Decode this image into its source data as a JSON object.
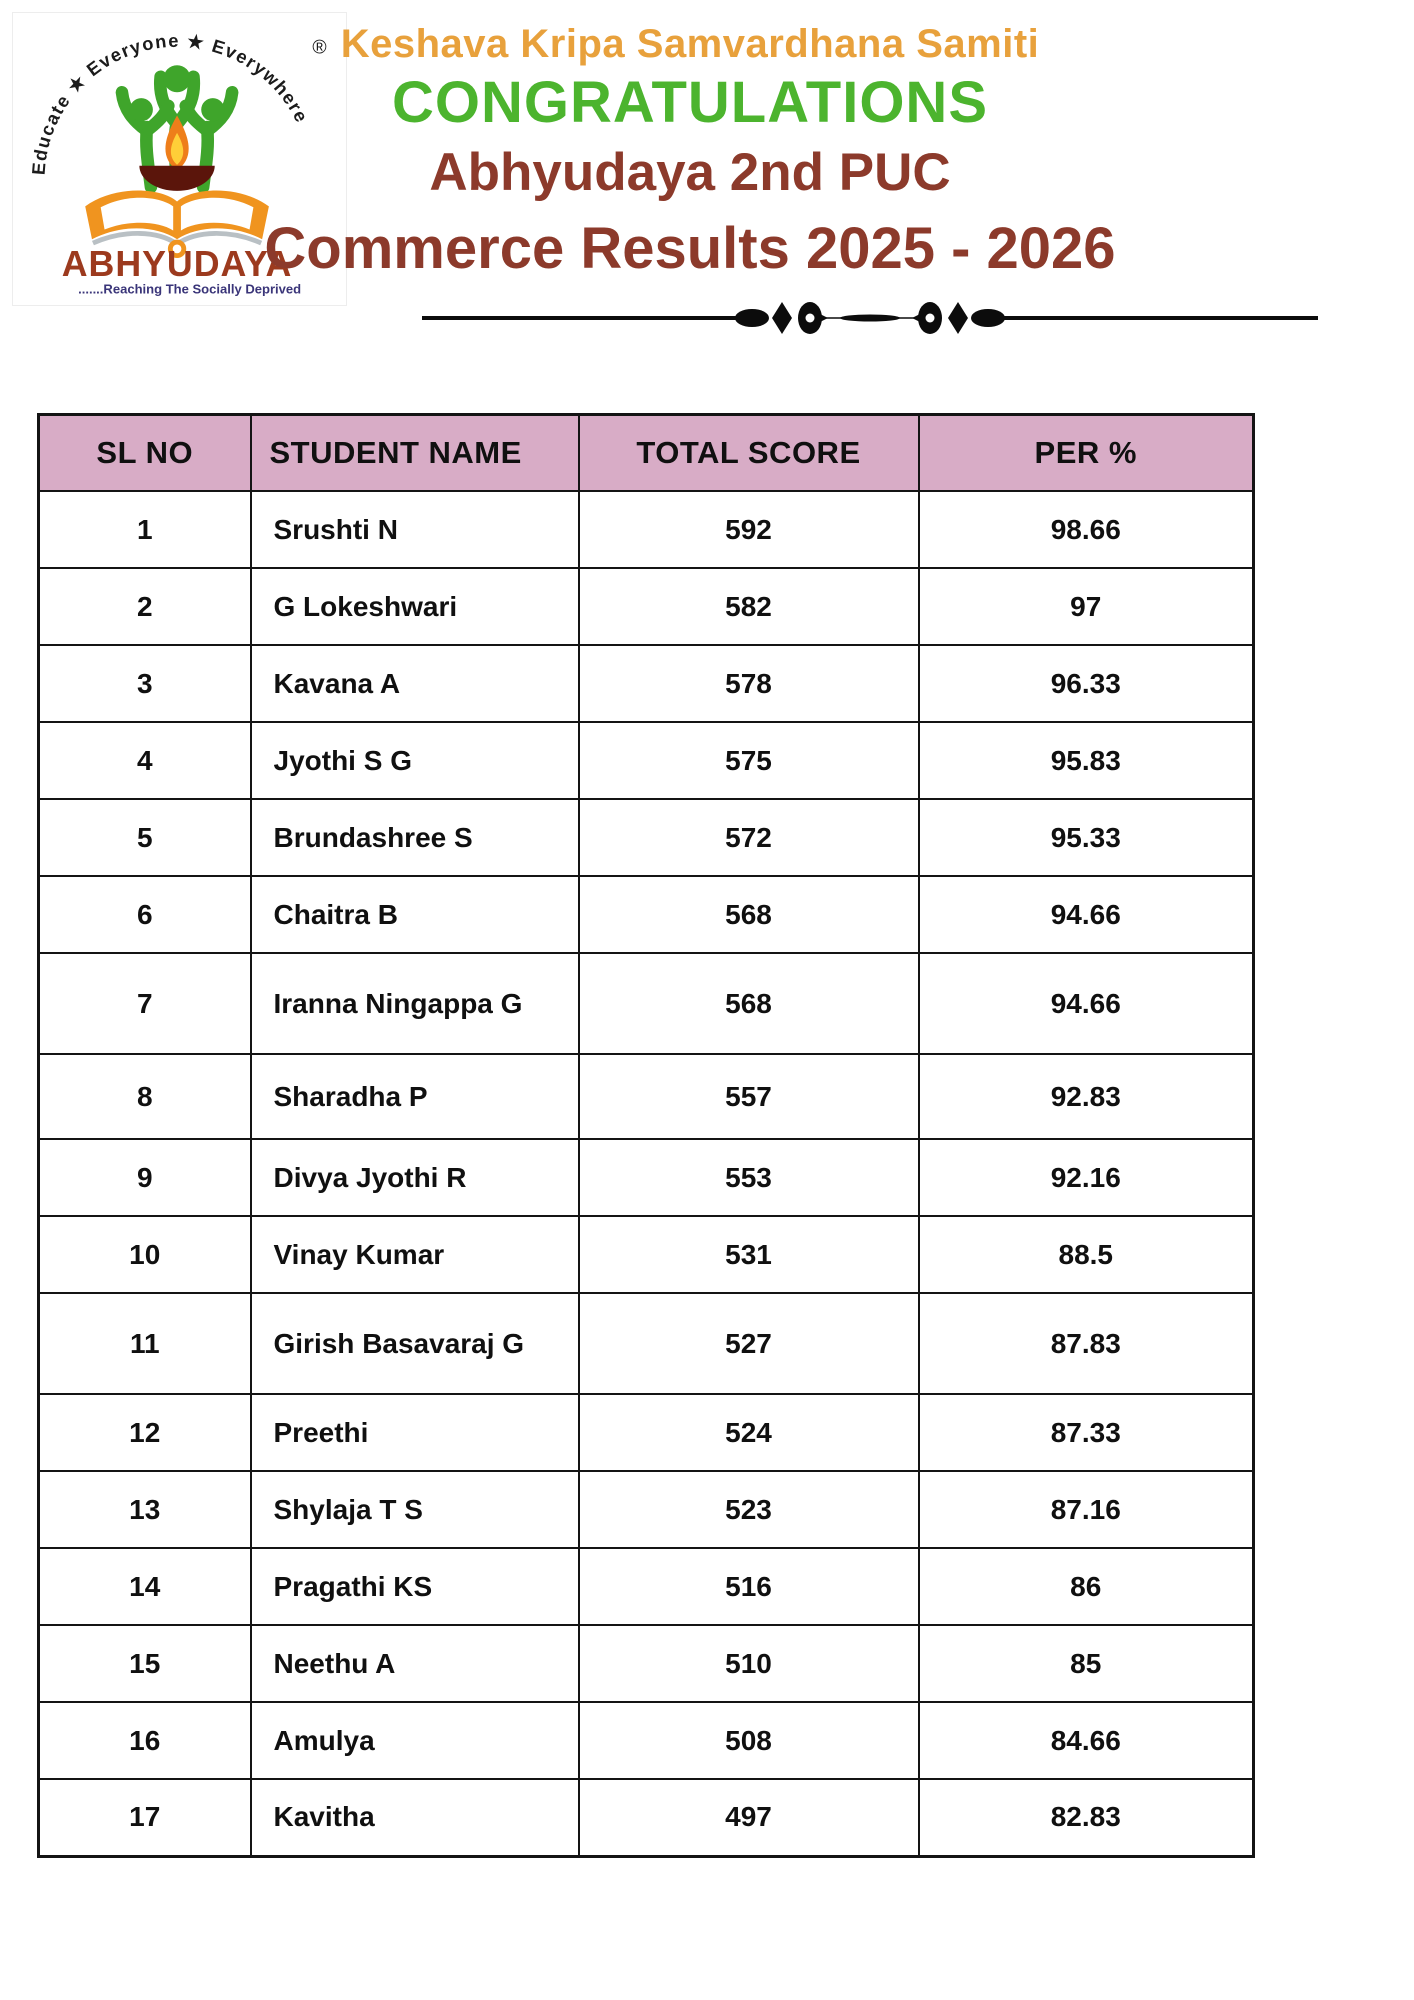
{
  "logo": {
    "arc_text": "Educate ★ Everyone ★ Everywhere",
    "registered_mark": "®",
    "org_name": "ABHYUDAYA",
    "tagline": ".......Reaching The Socially Deprived"
  },
  "header": {
    "organization": "Keshava Kripa Samvardhana Samiti",
    "congrats": "CONGRATULATIONS",
    "title_line1": "Abhyudaya 2nd PUC",
    "title_line2": "Commerce Results 2025 - 2026"
  },
  "colors": {
    "org_title_orange": "#E8A13C",
    "congrats_green": "#4CB42E",
    "results_maroon": "#8C3A2B",
    "table_header_pink": "#D8ACC6",
    "table_border_black": "#141414",
    "logo_green": "#3FA52B",
    "logo_orange": "#F0941F",
    "logo_name_red": "#9C3A1E",
    "logo_tagline_navy": "#3A3579",
    "divider_black": "#0c0c0c"
  },
  "table": {
    "columns": [
      "SL NO",
      "STUDENT NAME",
      "TOTAL SCORE",
      "PER %"
    ],
    "rows": [
      [
        "1",
        "Srushti N",
        "592",
        "98.66"
      ],
      [
        "2",
        "G Lokeshwari",
        "582",
        "97"
      ],
      [
        "3",
        "Kavana A",
        "578",
        "96.33"
      ],
      [
        "4",
        "Jyothi S G",
        "575",
        "95.83"
      ],
      [
        "5",
        "Brundashree S",
        "572",
        "95.33"
      ],
      [
        "6",
        "Chaitra B",
        "568",
        "94.66"
      ],
      [
        "7",
        "Iranna Ningappa G",
        "568",
        "94.66"
      ],
      [
        "8",
        "Sharadha P",
        "557",
        "92.83"
      ],
      [
        "9",
        "Divya Jyothi R",
        "553",
        "92.16"
      ],
      [
        "10",
        "Vinay Kumar",
        "531",
        "88.5"
      ],
      [
        "11",
        "Girish Basavaraj G",
        "527",
        "87.83"
      ],
      [
        "12",
        "Preethi",
        "524",
        "87.33"
      ],
      [
        "13",
        "Shylaja T S",
        "523",
        "87.16"
      ],
      [
        "14",
        "Pragathi KS",
        "516",
        "86"
      ],
      [
        "15",
        "Neethu A",
        "510",
        "85"
      ],
      [
        "16",
        "Amulya",
        "508",
        "84.66"
      ],
      [
        "17",
        "Kavitha",
        "497",
        "82.83"
      ]
    ]
  }
}
